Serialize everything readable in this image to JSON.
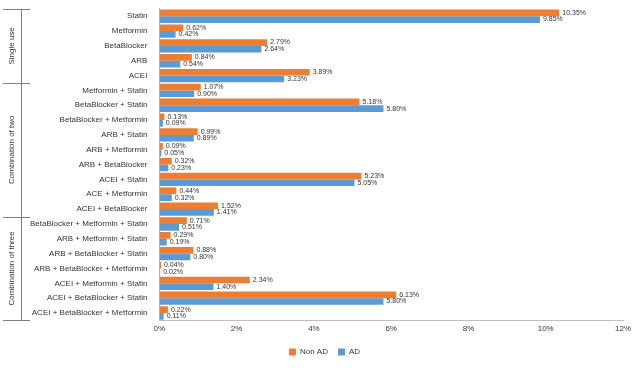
{
  "chart_data": {
    "type": "bar",
    "orientation": "horizontal",
    "categories": [
      "Statin",
      "Metformin",
      "BetaBlocker",
      "ARB",
      "ACEI",
      "Metformin + Statin",
      "BetaBlocker + Statin",
      "BetaBlocker + Metformin",
      "ARB + Statin",
      "ARB + Metformin",
      "ARB + BetaBlocker",
      "ACEI + Statin",
      "ACE + Metformin",
      "ACEI + BetaBlocker",
      "BetaBlocker + Metformin + Statin",
      "ARB + Metformin + Statin",
      "ARB + BetaBlocker + Statin",
      "ARB + BetaBlocker + Metformin",
      "ACEI + Metformin + Statin",
      "ACEI + BetaBlocker + Statin",
      "ACEI + BetaBlocker + Metformin"
    ],
    "groups": [
      {
        "label": "Single use",
        "categories": [
          "Statin",
          "Metformin",
          "BetaBlocker",
          "ARB",
          "ACEI"
        ]
      },
      {
        "label": "Combination of two",
        "categories": [
          "Metformin + Statin",
          "BetaBlocker + Statin",
          "BetaBlocker + Metformin",
          "ARB + Statin",
          "ARB + Metformin",
          "ARB + BetaBlocker",
          "ACEI + Statin",
          "ACE + Metformin",
          "ACEI + BetaBlocker"
        ]
      },
      {
        "label": "Combination of three",
        "categories": [
          "BetaBlocker + Metformin + Statin",
          "ARB + Metformin + Statin",
          "ARB + BetaBlocker + Statin",
          "ARB + BetaBlocker + Metformin",
          "ACEI + Metformin + Statin",
          "ACEI + BetaBlocker + Statin",
          "ACEI + BetaBlocker + Metformin"
        ]
      }
    ],
    "series": [
      {
        "name": "Non AD",
        "color": "#ed7d31",
        "values": [
          10.35,
          0.62,
          2.79,
          0.84,
          3.89,
          1.07,
          5.18,
          0.13,
          0.99,
          0.09,
          0.32,
          5.23,
          0.44,
          1.52,
          0.71,
          0.29,
          0.88,
          0.04,
          2.34,
          6.13,
          0.22
        ],
        "value_labels": [
          "10.35%",
          "0.62%",
          "2.79%",
          "0.84%",
          "3.89%",
          "1.07%",
          "5.18%",
          "0.13%",
          "0.99%",
          "0.09%",
          "0.32%",
          "5.23%",
          "0.44%",
          "1.52%",
          "0.71%",
          "0.29%",
          "0.88%",
          "0.04%",
          "2.34%",
          "6.13%",
          "0.22%"
        ]
      },
      {
        "name": "AD",
        "color": "#5b9bd5",
        "values": [
          9.85,
          0.42,
          2.64,
          0.54,
          3.23,
          0.9,
          5.8,
          0.09,
          0.89,
          0.05,
          0.23,
          5.05,
          0.32,
          1.41,
          0.51,
          0.19,
          0.8,
          0.02,
          1.4,
          5.8,
          0.11
        ],
        "value_labels": [
          "9.85%",
          "0.42%",
          "2.64%",
          "0.54%",
          "3.23%",
          "0.90%",
          "5.80%",
          "0.09%",
          "0.89%",
          "0.05%",
          "0.23%",
          "5.05%",
          "0.32%",
          "1.41%",
          "0.51%",
          "0.19%",
          "0.80%",
          "0.02%",
          "1.40%",
          "5.80%",
          "0.11%"
        ]
      }
    ],
    "xlim": [
      0,
      12
    ],
    "xticks": [
      {
        "value": 0,
        "label": "0%"
      },
      {
        "value": 2,
        "label": "2%"
      },
      {
        "value": 4,
        "label": "4%"
      },
      {
        "value": 6,
        "label": "6%"
      },
      {
        "value": 8,
        "label": "8%"
      },
      {
        "value": 10,
        "label": "10%"
      },
      {
        "value": 12,
        "label": "12%"
      }
    ],
    "grid": false,
    "legend": "bottom",
    "data_labels": true
  }
}
